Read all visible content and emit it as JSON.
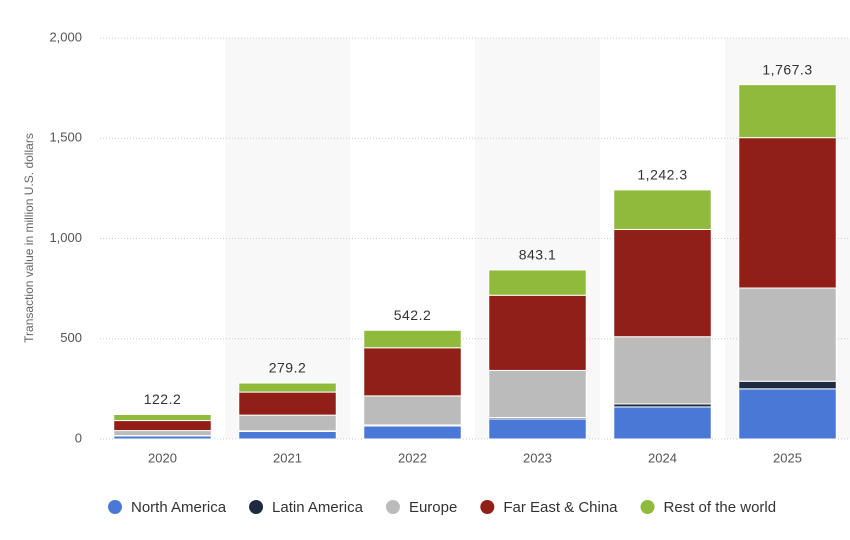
{
  "chart_data": {
    "type": "stacked_bar",
    "y_label": "Transaction value in million U.S. dollars",
    "categories": [
      "2020",
      "2021",
      "2022",
      "2023",
      "2024",
      "2025"
    ],
    "series": [
      {
        "name": "North America",
        "color": "#4a78d6",
        "values": [
          15,
          38,
          65,
          100,
          160,
          250
        ]
      },
      {
        "name": "Latin America",
        "color": "#1c2b42",
        "values": [
          2,
          3,
          5,
          7,
          15,
          38
        ]
      },
      {
        "name": "Europe",
        "color": "#bbbbbb",
        "values": [
          25,
          78,
          145,
          235,
          335,
          465
        ]
      },
      {
        "name": "Far East & China",
        "color": "#8f1f17",
        "values": [
          50,
          115,
          240,
          375,
          535,
          750
        ]
      },
      {
        "name": "Rest of the world",
        "color": "#8fba3c",
        "values": [
          30.2,
          45.2,
          87.2,
          126.1,
          197.3,
          264.3
        ]
      }
    ],
    "totals": [
      122.2,
      279.2,
      542.2,
      843.1,
      1242.3,
      1767.3
    ],
    "total_labels": [
      "122.2",
      "279.2",
      "542.2",
      "843.1",
      "1,242.3",
      "1,767.3"
    ],
    "ylim": [
      0,
      2000
    ],
    "yticks": [
      0,
      500,
      {
        "value": 1000,
        "label": "1,000"
      },
      {
        "value": 1500,
        "label": "1,500"
      },
      {
        "value": 2000,
        "label": "2,000"
      }
    ],
    "grid": true
  }
}
